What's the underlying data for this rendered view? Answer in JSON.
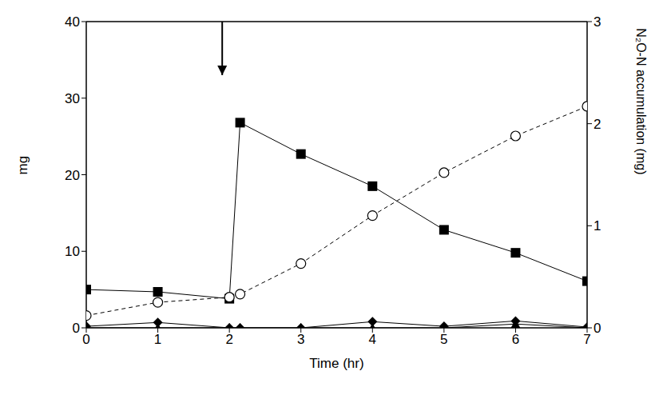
{
  "chart_data": {
    "type": "line",
    "x_label": "Time (hr)",
    "y_label": "mg",
    "y2_label": "N₂O-N accumulation (mg)",
    "x": [
      0,
      1,
      2,
      2.15,
      3,
      4,
      5,
      6,
      7
    ],
    "xlim": [
      0,
      7
    ],
    "xticks": [
      0,
      1,
      2,
      3,
      4,
      5,
      6,
      7
    ],
    "ylim": [
      0,
      40
    ],
    "yticks": [
      0,
      10,
      20,
      30,
      40
    ],
    "y2lim": [
      0,
      3
    ],
    "y2ticks": [
      0,
      1,
      2,
      3
    ],
    "grid": false,
    "series": [
      {
        "color": "#000000",
        "marker": "square",
        "line_style": "solid",
        "values": [
          5,
          4.7,
          3.8,
          26.8,
          22.7,
          18.5,
          12.8,
          9.8,
          6.1
        ]
      },
      {
        "color": "#000000",
        "marker": "circle_open",
        "line_style": "dashed",
        "axis": "y2",
        "values": [
          0.12,
          0.25,
          0.3,
          0.33,
          0.63,
          1.1,
          1.52,
          1.88,
          2.17
        ]
      },
      {
        "color": "#000000",
        "marker": "diamond",
        "line_style": "solid",
        "values": [
          0.2,
          0.7,
          0,
          0,
          0,
          0.8,
          0.2,
          0.9,
          0.1
        ]
      },
      {
        "color": "#000000",
        "marker": "triangle",
        "line_style": "solid",
        "values": [
          0,
          0,
          0,
          0,
          0,
          0,
          0,
          0.5,
          0
        ]
      }
    ],
    "annotations": [
      {
        "type": "arrow",
        "x": 1.9,
        "y": [
          40,
          33
        ]
      }
    ]
  }
}
